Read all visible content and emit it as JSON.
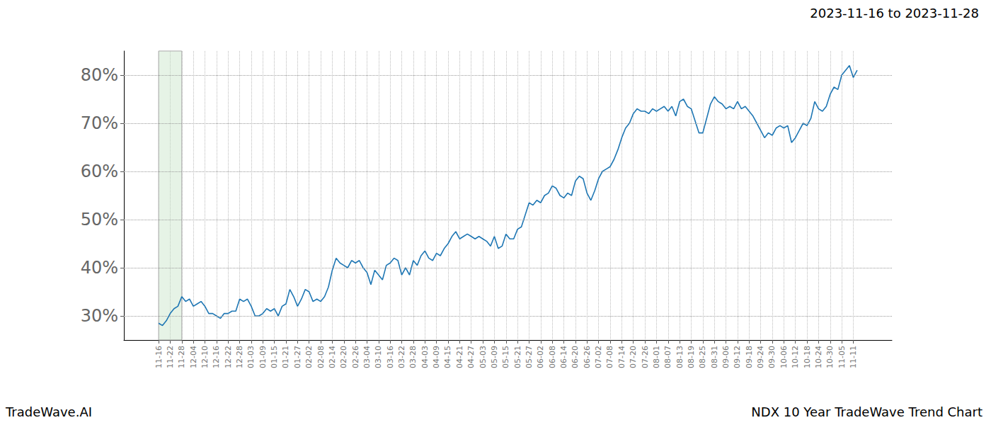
{
  "chart_data": {
    "type": "line",
    "title": "2023-11-16 to 2023-11-28",
    "footer": [
      "TradeWave.AI",
      "NDX 10 Year TradeWave Trend Chart"
    ],
    "highlight_range": [
      "11-16",
      "11-28"
    ],
    "color": "#1f77b4",
    "grid": true,
    "ylim": [
      25,
      85
    ],
    "yticks": [
      {
        "value": 30,
        "label": "30%"
      },
      {
        "value": 40,
        "label": "40%"
      },
      {
        "value": 50,
        "label": "50%"
      },
      {
        "value": 60,
        "label": "60%"
      },
      {
        "value": 70,
        "label": "70%"
      },
      {
        "value": 80,
        "label": "80%"
      }
    ],
    "categories": [
      null,
      null,
      null,
      null,
      null,
      null,
      null,
      null,
      null,
      "11-16",
      null,
      null,
      "11-22",
      null,
      null,
      "11-28",
      null,
      null,
      "12-04",
      null,
      null,
      "12-10",
      null,
      null,
      "12-16",
      null,
      null,
      "12-22",
      null,
      null,
      "12-28",
      null,
      null,
      "01-03",
      null,
      null,
      "01-09",
      null,
      null,
      "01-15",
      null,
      null,
      "01-21",
      null,
      null,
      "01-27",
      null,
      null,
      "02-02",
      null,
      null,
      "02-08",
      null,
      null,
      "02-14",
      null,
      null,
      "02-20",
      null,
      null,
      "02-26",
      null,
      null,
      "03-04",
      null,
      null,
      "03-10",
      null,
      null,
      "03-16",
      null,
      null,
      "03-22",
      null,
      null,
      "03-28",
      null,
      null,
      "04-03",
      null,
      null,
      "04-09",
      null,
      null,
      "04-15",
      null,
      null,
      "04-21",
      null,
      null,
      "04-27",
      null,
      null,
      "05-03",
      null,
      null,
      "05-09",
      null,
      null,
      "05-15",
      null,
      null,
      "05-21",
      null,
      null,
      "05-27",
      null,
      null,
      "06-02",
      null,
      null,
      "06-08",
      null,
      null,
      "06-14",
      null,
      null,
      "06-20",
      null,
      null,
      "06-26",
      null,
      null,
      "07-02",
      null,
      null,
      "07-08",
      null,
      null,
      "07-14",
      null,
      null,
      "07-20",
      null,
      null,
      "07-26",
      null,
      null,
      "08-01",
      null,
      null,
      "08-07",
      null,
      null,
      "08-13",
      null,
      null,
      "08-19",
      null,
      null,
      "08-25",
      null,
      null,
      "08-31",
      null,
      null,
      "09-06",
      null,
      null,
      "09-12",
      null,
      null,
      "09-18",
      null,
      null,
      "09-24",
      null,
      null,
      "09-30",
      null,
      null,
      "10-06",
      null,
      null,
      "10-12",
      null,
      null,
      "10-18",
      null,
      null,
      "10-24",
      null,
      null,
      "10-30",
      null,
      null,
      "11-05",
      null,
      null,
      "11-11",
      null,
      null,
      null,
      null,
      null,
      null,
      null,
      null,
      null,
      null
    ],
    "values": [
      null,
      null,
      null,
      null,
      null,
      null,
      null,
      null,
      null,
      28.5,
      28,
      29,
      30.5,
      31.5,
      32,
      34,
      33,
      33.5,
      32,
      32.5,
      33,
      32,
      30.5,
      30.5,
      30,
      29.5,
      30.5,
      30.5,
      31,
      31,
      33.5,
      33,
      33.5,
      32,
      30,
      30,
      30.5,
      31.5,
      31,
      31.5,
      30,
      32,
      32.5,
      35.5,
      34,
      32,
      33.5,
      35.5,
      35,
      33,
      33.5,
      33,
      34,
      36,
      39.5,
      42,
      41,
      40.5,
      40,
      41.5,
      41,
      41.5,
      40,
      39,
      36.5,
      39.5,
      38.5,
      37.5,
      40.5,
      41,
      42,
      41.5,
      38.5,
      40,
      38.5,
      41.5,
      40.5,
      42.5,
      43.5,
      42,
      41.5,
      43,
      42.5,
      44,
      45,
      46.5,
      47.5,
      46,
      46.5,
      47,
      46.5,
      46,
      46.5,
      46,
      45.5,
      44.5,
      46.5,
      44,
      44.5,
      47,
      46,
      46,
      48,
      48.5,
      51,
      53.5,
      53,
      54,
      53.5,
      55,
      55.5,
      57,
      56.5,
      55,
      54.5,
      55.5,
      55,
      58,
      59,
      58.5,
      55.5,
      54,
      56,
      58.5,
      60,
      60.5,
      61,
      62.5,
      64.5,
      67,
      69,
      70,
      72,
      73,
      72.5,
      72.5,
      72,
      73,
      72.5,
      73,
      73.5,
      72.5,
      73.5,
      71.5,
      74.5,
      75,
      73.5,
      73,
      70.5,
      68,
      68,
      71,
      74,
      75.5,
      74.5,
      74,
      73,
      73.5,
      73,
      74.5,
      73,
      73.5,
      72.5,
      71.5,
      70,
      68.5,
      67,
      68,
      67.5,
      69,
      69.5,
      69,
      69.5,
      66,
      67,
      68.5,
      70,
      69.5,
      71,
      74.5,
      73,
      72.5,
      73.5,
      76,
      77.5,
      77,
      80,
      81,
      82,
      79.5,
      81,
      null,
      null,
      null,
      null,
      null,
      null,
      null,
      null,
      null
    ]
  }
}
